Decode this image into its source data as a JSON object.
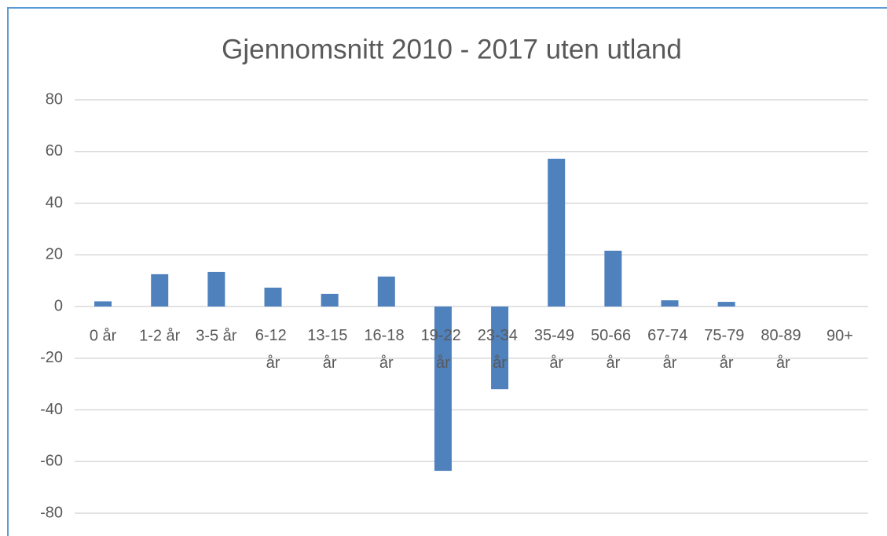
{
  "chart_data": {
    "type": "bar",
    "title": "Gjennomsnitt 2010 - 2017 uten utland",
    "categories": [
      "0 år",
      "1-2 år",
      "3-5 år",
      "6-12 år",
      "13-15 år",
      "16-18 år",
      "19-22 år",
      "23-34 år",
      "35-49 år",
      "50-66 år",
      "67-74 år",
      "75-79 år",
      "80-89 år",
      "90+"
    ],
    "values": [
      2,
      12.5,
      13.4,
      7.3,
      4.9,
      11.6,
      -63.6,
      -32,
      57.2,
      21.6,
      2.4,
      1.8,
      0,
      0
    ],
    "color": "#4f81bd",
    "ylim": [
      -80,
      80
    ],
    "yticks": [
      -80,
      -60,
      -40,
      -20,
      0,
      20,
      40,
      60,
      80
    ],
    "grid": true
  }
}
